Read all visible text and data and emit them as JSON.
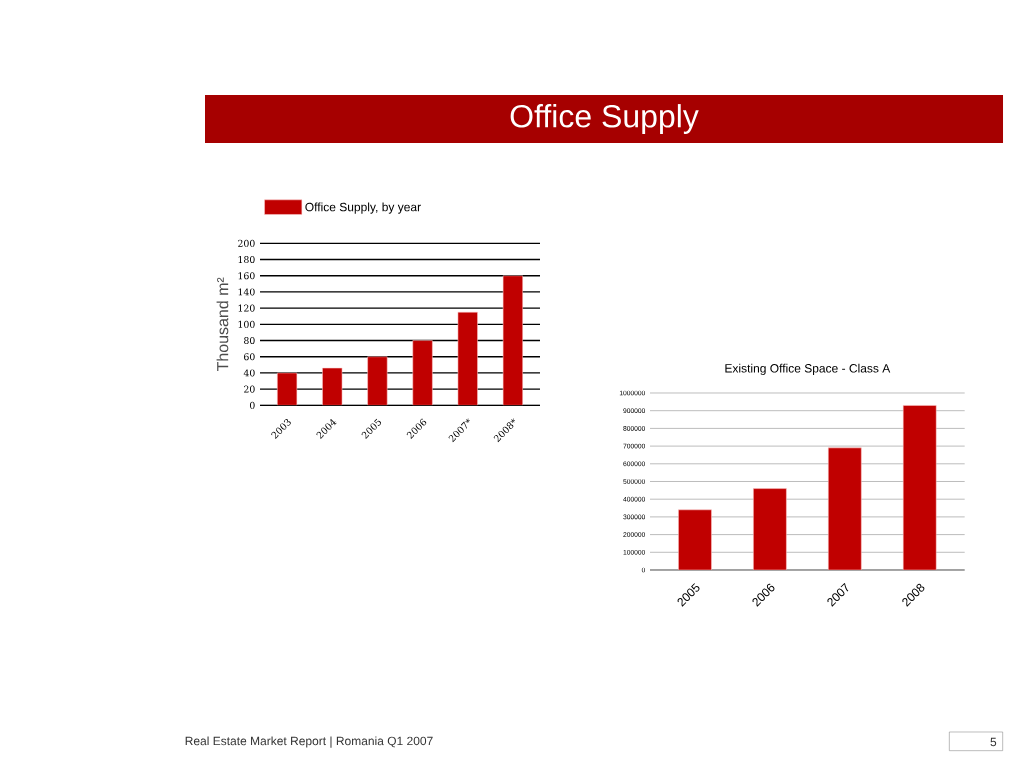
{
  "chart_data": [
    {
      "type": "bar",
      "title": "Office Supply",
      "ylabel": "Thousand m²",
      "categories": [
        "2003",
        "2004",
        "2005",
        "2006",
        "2007*",
        "2008*"
      ],
      "series": [
        {
          "name": "Office Supply, by year",
          "color": "#c00000",
          "values": [
            40,
            46,
            60,
            80,
            115,
            160
          ]
        }
      ],
      "ylim": [
        0,
        200
      ],
      "yticks": [
        0,
        20,
        40,
        60,
        80,
        100,
        120,
        140,
        160,
        180,
        200
      ],
      "grid": "y",
      "legend": "top",
      "annotations": [
        "Real Estate Market Report | Romania Q1 2007",
        "5"
      ]
    },
    {
      "type": "bar",
      "title": "Existing Office Space - Class A",
      "categories": [
        "2005",
        "2006",
        "2007",
        "2008"
      ],
      "series": [
        {
          "color": "#c00000",
          "values": [
            340000,
            460000,
            690000,
            930000
          ]
        }
      ],
      "ylim": [
        0,
        1000000
      ],
      "yticks": [
        0,
        100000,
        200000,
        300000,
        400000,
        500000,
        600000,
        700000,
        800000,
        900000,
        1000000
      ],
      "grid": "y"
    }
  ]
}
